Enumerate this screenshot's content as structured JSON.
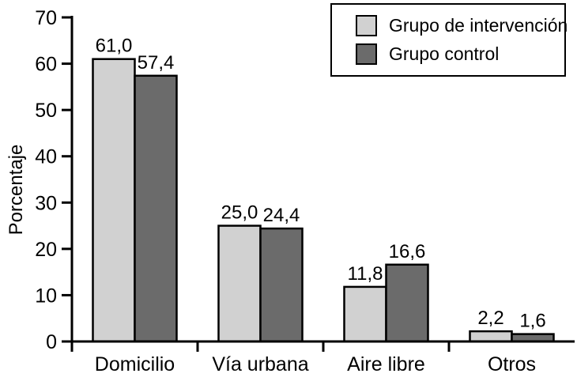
{
  "figure": {
    "background": "#ffffff",
    "axis_color": "#000000"
  },
  "chart_data": {
    "type": "bar",
    "title": "",
    "xlabel": "",
    "ylabel": "Porcentaje",
    "ylim": [
      0,
      70
    ],
    "yticks": [
      0,
      10,
      20,
      30,
      40,
      50,
      60,
      70
    ],
    "grid": false,
    "legend_position": "top-right",
    "categories": [
      "Domicilio",
      "Vía urbana",
      "Aire libre",
      "Otros"
    ],
    "series": [
      {
        "name": "Grupo de intervención",
        "color": "#d1d1d1",
        "values": [
          61.0,
          25.0,
          11.8,
          2.2
        ],
        "labels": [
          "61,0",
          "25,0",
          "11,8",
          "2,2"
        ]
      },
      {
        "name": "Grupo control",
        "color": "#6b6b6b",
        "values": [
          57.4,
          24.4,
          16.6,
          1.6
        ],
        "labels": [
          "57,4",
          "24,4",
          "16,6",
          "1,6"
        ]
      }
    ]
  }
}
